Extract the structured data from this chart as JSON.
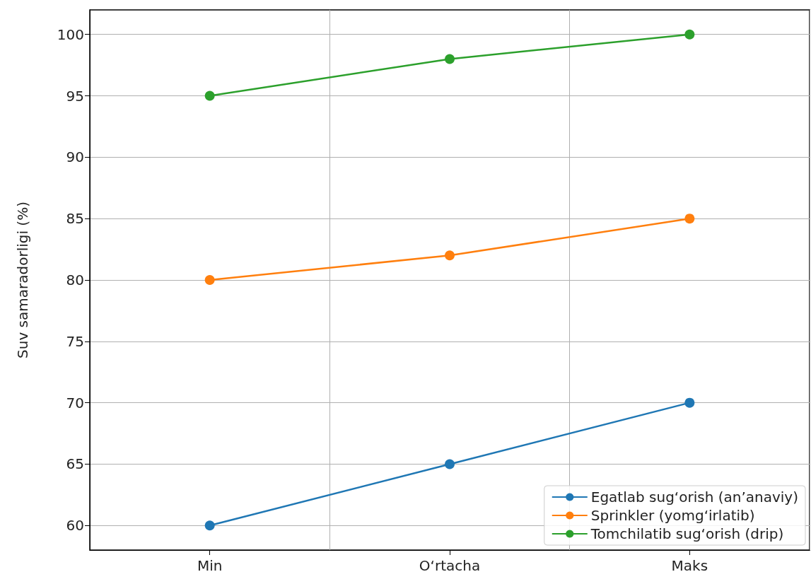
{
  "chart_data": {
    "type": "line",
    "ylabel": "Suv samaradorligi (%)",
    "categories": [
      "Min",
      "O‘rtacha",
      "Maks"
    ],
    "series": [
      {
        "name": "Egatlab sug‘orish (an’anaviy)",
        "color": "#1f77b4",
        "values": [
          60,
          65,
          70
        ]
      },
      {
        "name": "Sprinkler (yomg‘irlatib)",
        "color": "#ff7f0e",
        "values": [
          80,
          82,
          85
        ]
      },
      {
        "name": "Tomchilatib sug‘orish (drip)",
        "color": "#2ca02c",
        "values": [
          95,
          98,
          100
        ]
      }
    ],
    "ylim": [
      58,
      102
    ],
    "yticks": [
      60,
      65,
      70,
      75,
      80,
      85,
      90,
      95,
      100
    ],
    "grid": true,
    "legend": "bottom right",
    "marker": "circle",
    "line_style": "solid"
  }
}
